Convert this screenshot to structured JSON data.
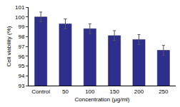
{
  "chart_data": {
    "type": "bar",
    "x_label": "Concentration (μg/ml)",
    "y_label": "Cell viability (%)",
    "categories": [
      "Control",
      "50",
      "100",
      "150",
      "200",
      "250"
    ],
    "values": [
      100,
      99.3,
      98.8,
      98.1,
      97.7,
      96.6
    ],
    "errors": [
      0.5,
      0.5,
      0.5,
      0.5,
      0.5,
      0.5
    ],
    "color": "#2e2e8c",
    "ylim": [
      93,
      101
    ],
    "yticks": [
      93,
      94,
      95,
      96,
      97,
      98,
      99,
      100,
      101
    ],
    "grid": false
  }
}
